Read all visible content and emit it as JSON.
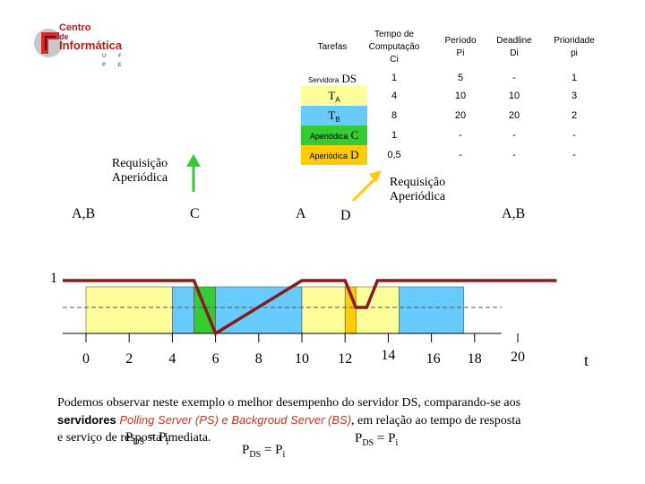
{
  "logo": {
    "line1": "Centro",
    "line2": "de",
    "line3": "Informática",
    "line4": "U F P E"
  },
  "table": {
    "headers": [
      "Tarefas",
      "Tempo de Computação Ci",
      "Período Pi",
      "Deadline Di",
      "Prioridade pi"
    ],
    "header_parts": {
      "c1": "Tempo de",
      "c2": "Computação",
      "c3": "Ci",
      "p1": "Período",
      "p2": "Pi",
      "d1": "Deadline",
      "d2": "Di",
      "pr1": "Prioridade",
      "pr2": "pi"
    },
    "rows": [
      {
        "task_prefix": "Servidora",
        "task_big": "DS",
        "c": "1",
        "p": "5",
        "d": "-",
        "pr": "1",
        "color": "#ffffff"
      },
      {
        "task_prefix": "T",
        "task_sub": "A",
        "c": "4",
        "p": "10",
        "d": "10",
        "pr": "3",
        "color": "#ffff99"
      },
      {
        "task_prefix": "T",
        "task_sub": "B",
        "c": "8",
        "p": "20",
        "d": "20",
        "pr": "2",
        "color": "#66ccff"
      },
      {
        "task_prefix": "Aperiódica",
        "task_big": "C",
        "c": "1",
        "p": "-",
        "d": "-",
        "pr": "-",
        "color": "#33cc33"
      },
      {
        "task_prefix": "Aperiódica",
        "task_big": "D",
        "c": "0,5",
        "p": "-",
        "d": "-",
        "pr": "-",
        "color": "#ffcc00"
      }
    ]
  },
  "callouts": {
    "left_line1": "Requisição",
    "left_line2": "Aperiódica",
    "right_line1": "Requisição",
    "right_line2": "Aperiódica"
  },
  "events": {
    "ab_left": "A,B",
    "c": "C",
    "a": "A",
    "d": "D",
    "ab_right": "A,B"
  },
  "y_label": "1",
  "timeline": {
    "ticks": [
      "0",
      "2",
      "4",
      "6",
      "8",
      "10",
      "12",
      "14",
      "16",
      "18",
      "20"
    ],
    "t_label": "t",
    "segments": [
      {
        "task": "TA",
        "start": 0,
        "end": 4,
        "color": "#ffff99"
      },
      {
        "task": "TB",
        "start": 4,
        "end": 5,
        "color": "#66ccff"
      },
      {
        "task": "C",
        "start": 5,
        "end": 6,
        "color": "#33cc33"
      },
      {
        "task": "TB",
        "start": 6,
        "end": 10,
        "color": "#66ccff"
      },
      {
        "task": "TA",
        "start": 10,
        "end": 12,
        "color": "#ffff99"
      },
      {
        "task": "D",
        "start": 12,
        "end": 12.5,
        "color": "#ffcc00"
      },
      {
        "task": "TA",
        "start": 12.5,
        "end": 14.5,
        "color": "#ffff99"
      },
      {
        "task": "TB",
        "start": 14.5,
        "end": 17.5,
        "color": "#66ccff"
      }
    ],
    "server_capacity": [
      [
        0,
        1
      ],
      [
        5,
        1
      ],
      [
        6,
        0
      ],
      [
        10,
        1
      ],
      [
        12,
        1
      ],
      [
        12.5,
        0.5
      ],
      [
        13,
        0.5
      ],
      [
        13.5,
        1
      ],
      [
        21.8,
        1
      ]
    ]
  },
  "paragraph": {
    "l1": "Podemos observar neste exemplo o melhor desempenho do servidor DS, comparando-se aos",
    "l2a": "servidores ",
    "l2b": "Polling Server (PS) e Backgroud Server (BS)",
    "l2c": ", em relação ao tempo de resposta",
    "l3": "e serviço de resposta imediata."
  },
  "equations": {
    "p": "P",
    "ds": "DS",
    "eq": " = P",
    "i": "i"
  }
}
